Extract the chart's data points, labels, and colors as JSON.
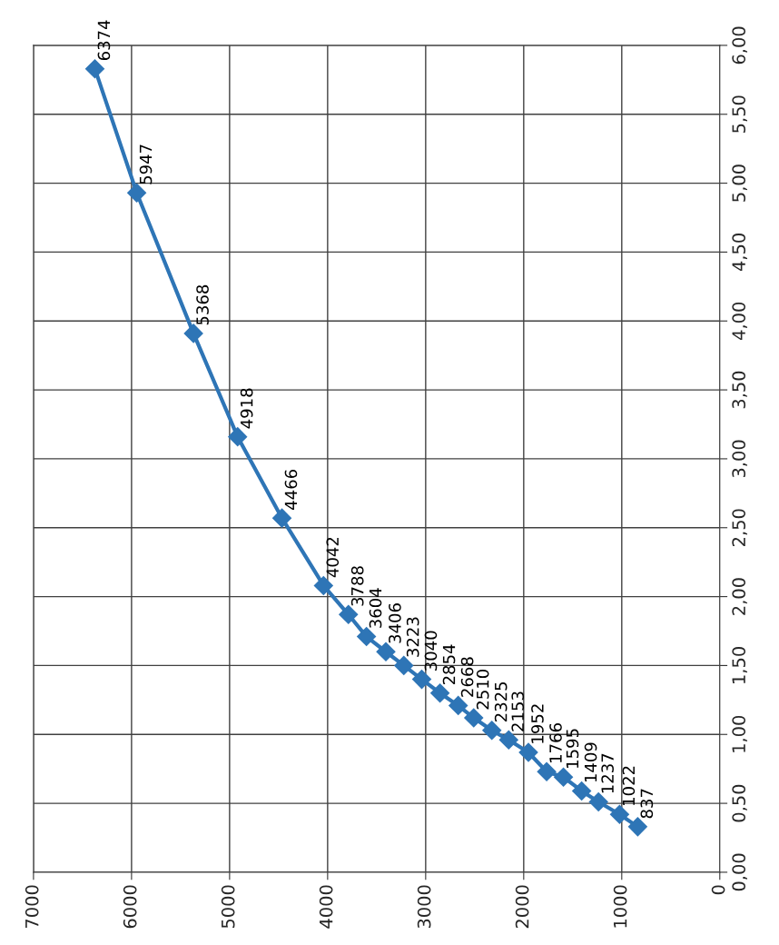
{
  "chart_data": {
    "type": "line",
    "x": [
      6374,
      5947,
      5368,
      4918,
      4466,
      4042,
      3788,
      3604,
      3406,
      3223,
      3040,
      2854,
      2668,
      2510,
      2325,
      2153,
      1952,
      1766,
      1595,
      1409,
      1237,
      1022,
      837
    ],
    "series": [
      {
        "color": "#2e75b6",
        "values": [
          5.83,
          4.93,
          3.91,
          3.16,
          2.57,
          2.08,
          1.87,
          1.71,
          1.6,
          1.5,
          1.4,
          1.3,
          1.21,
          1.12,
          1.03,
          0.96,
          0.87,
          0.73,
          0.69,
          0.59,
          0.51,
          0.42,
          0.33
        ]
      }
    ],
    "annotations": [
      {
        "text": "6374",
        "x": 6374,
        "y": 5.83
      },
      {
        "text": "5947",
        "x": 5947,
        "y": 4.93
      },
      {
        "text": "5368",
        "x": 5368,
        "y": 3.91
      },
      {
        "text": "4918",
        "x": 4918,
        "y": 3.16
      },
      {
        "text": "4466",
        "x": 4466,
        "y": 2.57
      },
      {
        "text": "4042",
        "x": 4042,
        "y": 2.08
      },
      {
        "text": "3788",
        "x": 3788,
        "y": 1.87
      },
      {
        "text": "3604",
        "x": 3604,
        "y": 1.71
      },
      {
        "text": "3406",
        "x": 3406,
        "y": 1.6
      },
      {
        "text": "3223",
        "x": 3223,
        "y": 1.5
      },
      {
        "text": "3040",
        "x": 3040,
        "y": 1.4
      },
      {
        "text": "2854",
        "x": 2854,
        "y": 1.3
      },
      {
        "text": "2668",
        "x": 2668,
        "y": 1.21
      },
      {
        "text": "2510",
        "x": 2510,
        "y": 1.12
      },
      {
        "text": "2325",
        "x": 2325,
        "y": 1.03
      },
      {
        "text": "2153",
        "x": 2153,
        "y": 0.96
      },
      {
        "text": "1952",
        "x": 1952,
        "y": 0.87
      },
      {
        "text": "1766",
        "x": 1766,
        "y": 0.73
      },
      {
        "text": "1595",
        "x": 1595,
        "y": 0.69
      },
      {
        "text": "1409",
        "x": 1409,
        "y": 0.59
      },
      {
        "text": "1237",
        "x": 1237,
        "y": 0.51
      },
      {
        "text": "1022",
        "x": 1022,
        "y": 0.42
      },
      {
        "text": "837",
        "x": 837,
        "y": 0.33
      }
    ],
    "xlim": [
      7000,
      0
    ],
    "xticks": [
      0,
      1000,
      2000,
      3000,
      4000,
      5000,
      6000,
      7000
    ],
    "ylim": [
      0,
      6
    ],
    "yticks": [
      {
        "value": 0,
        "label": "0,00"
      },
      {
        "value": 0.5,
        "label": "0,50"
      },
      {
        "value": 1,
        "label": "1,00"
      },
      {
        "value": 1.5,
        "label": "1,50"
      },
      {
        "value": 2,
        "label": "2,00"
      },
      {
        "value": 2.5,
        "label": "2,50"
      },
      {
        "value": 3,
        "label": "3,00"
      },
      {
        "value": 3.5,
        "label": "3,50"
      },
      {
        "value": 4,
        "label": "4,00"
      },
      {
        "value": 4.5,
        "label": "4,50"
      },
      {
        "value": 5,
        "label": "5,00"
      },
      {
        "value": 5.5,
        "label": "5,50"
      },
      {
        "value": 6,
        "label": "6,00"
      }
    ],
    "grid": true,
    "marker": "diamond",
    "line_style": "solid"
  }
}
